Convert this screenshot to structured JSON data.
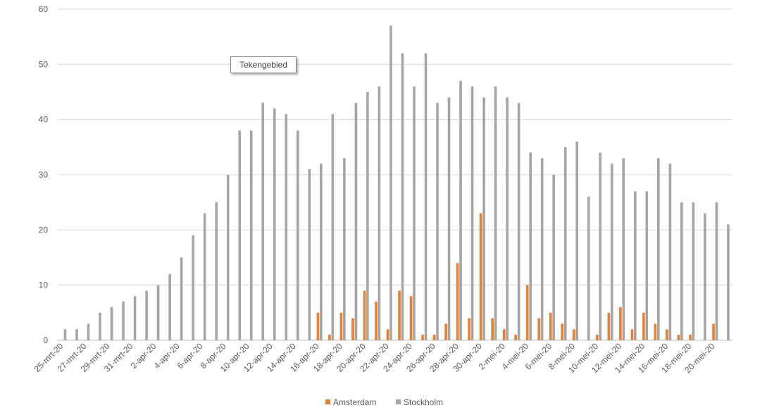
{
  "tooltip": {
    "text": "Tekengebied"
  },
  "colors": {
    "amsterdam": "#ED7D31",
    "stockholm": "#A5A5A5",
    "grid": "#D9D9D9",
    "axis": "#BFBFBF",
    "text": "#595959"
  },
  "chart_data": {
    "type": "bar",
    "title": "",
    "xlabel": "",
    "ylabel": "",
    "ylim": [
      0,
      60
    ],
    "yticks": [
      0,
      10,
      20,
      30,
      40,
      50,
      60
    ],
    "grid": true,
    "legend_position": "bottom",
    "categories": [
      "25-mrt-20",
      "26-mrt-20",
      "27-mrt-20",
      "28-mrt-20",
      "29-mrt-20",
      "30-mrt-20",
      "31-mrt-20",
      "1-apr-20",
      "2-apr-20",
      "3-apr-20",
      "4-apr-20",
      "5-apr-20",
      "6-apr-20",
      "7-apr-20",
      "8-apr-20",
      "9-apr-20",
      "10-apr-20",
      "11-apr-20",
      "12-apr-20",
      "13-apr-20",
      "14-apr-20",
      "15-apr-20",
      "16-apr-20",
      "17-apr-20",
      "18-apr-20",
      "19-apr-20",
      "20-apr-20",
      "21-apr-20",
      "22-apr-20",
      "23-apr-20",
      "24-apr-20",
      "25-apr-20",
      "26-apr-20",
      "27-apr-20",
      "28-apr-20",
      "29-apr-20",
      "30-apr-20",
      "1-mei-20",
      "2-mei-20",
      "3-mei-20",
      "4-mei-20",
      "5-mei-20",
      "6-mei-20",
      "7-mei-20",
      "8-mei-20",
      "9-mei-20",
      "10-mei-20",
      "11-mei-20",
      "12-mei-20",
      "13-mei-20",
      "14-mei-20",
      "15-mei-20",
      "16-mei-20",
      "17-mei-20",
      "18-mei-20",
      "19-mei-20",
      "20-mei-20",
      "21-mei-20"
    ],
    "xtick_labels": [
      "25-mrt-20",
      "",
      "27-mrt-20",
      "",
      "29-mrt-20",
      "",
      "31-mrt-20",
      "",
      "2-apr-20",
      "",
      "4-apr-20",
      "",
      "6-apr-20",
      "",
      "8-apr-20",
      "",
      "10-apr-20",
      "",
      "12-apr-20",
      "",
      "14-apr-20",
      "",
      "16-apr-20",
      "",
      "18-apr-20",
      "",
      "20-apr-20",
      "",
      "22-apr-20",
      "",
      "24-apr-20",
      "",
      "26-apr-20",
      "",
      "28-apr-20",
      "",
      "30-apr-20",
      "",
      "2-mei-20",
      "",
      "4-mei-20",
      "",
      "6-mei-20",
      "",
      "8-mei-20",
      "",
      "10-mei-20",
      "",
      "12-mei-20",
      "",
      "14-mei-20",
      "",
      "16-mei-20",
      "",
      "18-mei-20",
      "",
      "20-mei-20",
      ""
    ],
    "series": [
      {
        "name": "Amsterdam",
        "values": [
          0,
          0,
          0,
          0,
          0,
          0,
          0,
          0,
          0,
          0,
          0,
          0,
          0,
          0,
          0,
          0,
          0,
          0,
          0,
          0,
          0,
          0,
          5,
          1,
          5,
          4,
          9,
          7,
          2,
          9,
          8,
          1,
          1,
          3,
          14,
          4,
          23,
          4,
          2,
          1,
          10,
          4,
          5,
          3,
          2,
          0,
          1,
          5,
          6,
          2,
          5,
          3,
          2,
          1,
          1,
          0,
          3,
          0
        ]
      },
      {
        "name": "Stockholm",
        "values": [
          2,
          2,
          3,
          5,
          6,
          7,
          8,
          9,
          10,
          12,
          15,
          19,
          23,
          25,
          30,
          38,
          38,
          43,
          42,
          41,
          38,
          31,
          32,
          41,
          33,
          43,
          45,
          46,
          57,
          52,
          46,
          52,
          43,
          44,
          47,
          46,
          44,
          46,
          44,
          43,
          34,
          33,
          30,
          35,
          36,
          26,
          34,
          32,
          33,
          27,
          27,
          33,
          32,
          25,
          25,
          23,
          25,
          21
        ]
      }
    ]
  }
}
